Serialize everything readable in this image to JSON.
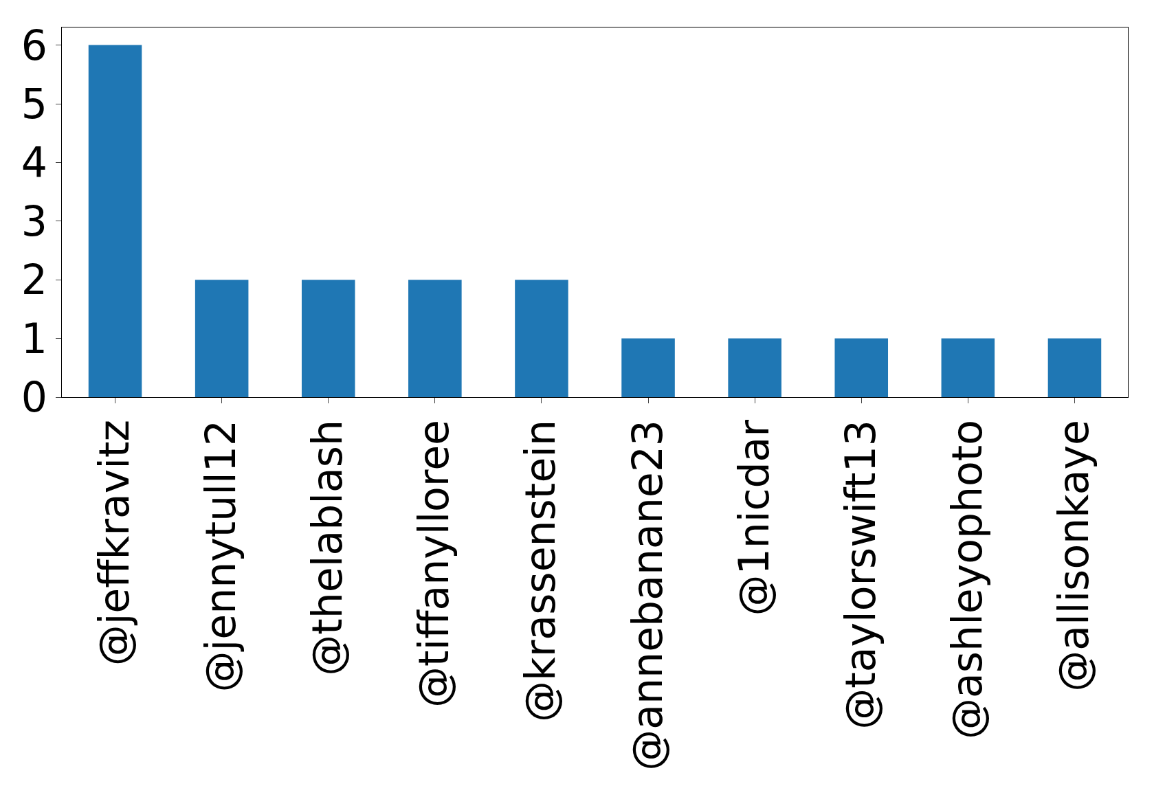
{
  "chart_data": {
    "type": "bar",
    "categories": [
      "@jeffkravitz",
      "@jennytull12",
      "@thelablash",
      "@tiffanylloree",
      "@krassenstein",
      "@annebanane23",
      "@1nicdar",
      "@taylorswift13",
      "@ashleyophoto",
      "@allisonkaye"
    ],
    "values": [
      6,
      2,
      2,
      2,
      2,
      1,
      1,
      1,
      1,
      1
    ],
    "color": "#1f77b4",
    "ylim": [
      0,
      6.3
    ],
    "yticks": [
      0,
      1,
      2,
      3,
      4,
      5,
      6
    ],
    "legend": false
  }
}
